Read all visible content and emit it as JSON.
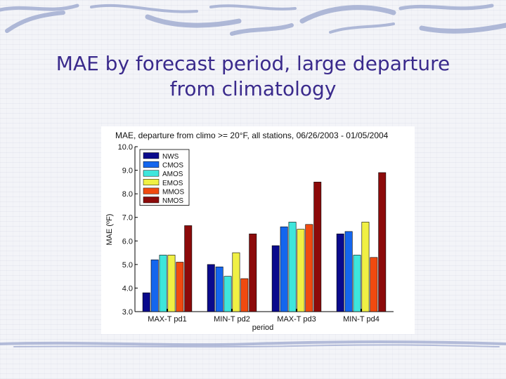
{
  "slide": {
    "title_line1": "MAE by forecast period, large departure",
    "title_line2": "from climatology"
  },
  "colors": {
    "title": "#3a2a8c",
    "decor": "#8f9cc6",
    "NWS": "#0a0a8c",
    "CMOS": "#1466ee",
    "AMOS": "#3ee6dc",
    "EMOS": "#f0f044",
    "MMOS": "#f04a10",
    "NMOS": "#8c0a0a"
  },
  "chart_data": {
    "type": "bar",
    "title": "MAE, departure from climo >= 20°F, all stations, 06/26/2003 - 01/05/2004",
    "xlabel": "period",
    "ylabel": "MAE (ºF)",
    "ylim": [
      3.0,
      10.0
    ],
    "yticks": [
      "3.0",
      "4.0",
      "5.0",
      "6.0",
      "7.0",
      "8.0",
      "9.0",
      "10.0"
    ],
    "categories": [
      "MAX-T pd1",
      "MIN-T pd2",
      "MAX-T pd3",
      "MIN-T pd4"
    ],
    "legend_position": "top-left",
    "grid": false,
    "series": [
      {
        "name": "NWS",
        "color": "#0a0a8c",
        "values": [
          3.8,
          5.0,
          5.8,
          6.3
        ]
      },
      {
        "name": "CMOS",
        "color": "#1466ee",
        "values": [
          5.2,
          4.9,
          6.6,
          6.4
        ]
      },
      {
        "name": "AMOS",
        "color": "#3ee6dc",
        "values": [
          5.4,
          4.5,
          6.8,
          5.4
        ]
      },
      {
        "name": "EMOS",
        "color": "#f0f044",
        "values": [
          5.4,
          5.5,
          6.5,
          6.8
        ]
      },
      {
        "name": "MMOS",
        "color": "#f04a10",
        "values": [
          5.1,
          4.4,
          6.7,
          5.3
        ]
      },
      {
        "name": "NMOS",
        "color": "#8c0a0a",
        "values": [
          6.65,
          6.3,
          8.5,
          8.9
        ]
      }
    ]
  }
}
